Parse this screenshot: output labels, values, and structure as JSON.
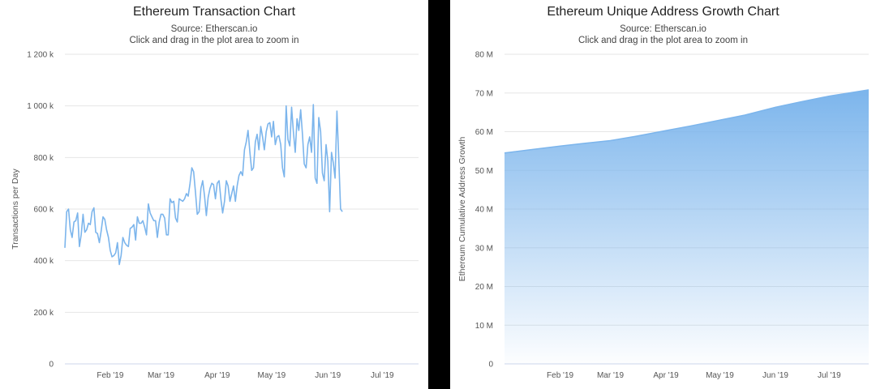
{
  "chart_data": [
    {
      "type": "line",
      "title": "Ethereum Transaction Chart",
      "subtitle": [
        "Source: Etherscan.io",
        "Click and drag in the plot area to zoom in"
      ],
      "ylabel": "Transactions per Day",
      "xlabel": "",
      "ylim": [
        0,
        1200000
      ],
      "yticks": [
        {
          "value": 0,
          "label": "0"
        },
        {
          "value": 200000,
          "label": "200 k"
        },
        {
          "value": 400000,
          "label": "400 k"
        },
        {
          "value": 600000,
          "label": "600 k"
        },
        {
          "value": 800000,
          "label": "800 k"
        },
        {
          "value": 1000000,
          "label": "1 000 k"
        },
        {
          "value": 1200000,
          "label": "1 200 k"
        }
      ],
      "xrange": [
        "2019-01-07",
        "2019-07-21"
      ],
      "xticks": [
        {
          "date": "2019-02-01",
          "label": "Feb '19"
        },
        {
          "date": "2019-03-01",
          "label": "Mar '19"
        },
        {
          "date": "2019-04-01",
          "label": "Apr '19"
        },
        {
          "date": "2019-05-01",
          "label": "May '19"
        },
        {
          "date": "2019-06-01",
          "label": "Jun '19"
        },
        {
          "date": "2019-07-01",
          "label": "Jul '19"
        }
      ],
      "grid": true,
      "color": "#7cb5ec",
      "series": [
        {
          "points": [
            [
              "2019-01-07",
              450000
            ],
            [
              "2019-01-08",
              590000
            ],
            [
              "2019-01-09",
              600000
            ],
            [
              "2019-01-10",
              520000
            ],
            [
              "2019-01-11",
              490000
            ],
            [
              "2019-01-12",
              550000
            ],
            [
              "2019-01-13",
              555000
            ],
            [
              "2019-01-14",
              585000
            ],
            [
              "2019-01-15",
              455000
            ],
            [
              "2019-01-16",
              500000
            ],
            [
              "2019-01-17",
              580000
            ],
            [
              "2019-01-18",
              510000
            ],
            [
              "2019-01-19",
              520000
            ],
            [
              "2019-01-20",
              545000
            ],
            [
              "2019-01-21",
              540000
            ],
            [
              "2019-01-22",
              590000
            ],
            [
              "2019-01-23",
              605000
            ],
            [
              "2019-01-24",
              510000
            ],
            [
              "2019-01-25",
              505000
            ],
            [
              "2019-01-26",
              470000
            ],
            [
              "2019-01-27",
              515000
            ],
            [
              "2019-01-28",
              570000
            ],
            [
              "2019-01-29",
              560000
            ],
            [
              "2019-01-30",
              520000
            ],
            [
              "2019-01-31",
              490000
            ],
            [
              "2019-02-01",
              440000
            ],
            [
              "2019-02-02",
              415000
            ],
            [
              "2019-02-03",
              420000
            ],
            [
              "2019-02-04",
              430000
            ],
            [
              "2019-02-05",
              470000
            ],
            [
              "2019-02-06",
              385000
            ],
            [
              "2019-02-07",
              420000
            ],
            [
              "2019-02-08",
              490000
            ],
            [
              "2019-02-09",
              470000
            ],
            [
              "2019-02-10",
              460000
            ],
            [
              "2019-02-11",
              455000
            ],
            [
              "2019-02-12",
              525000
            ],
            [
              "2019-02-13",
              530000
            ],
            [
              "2019-02-14",
              540000
            ],
            [
              "2019-02-15",
              480000
            ],
            [
              "2019-02-16",
              570000
            ],
            [
              "2019-02-17",
              545000
            ],
            [
              "2019-02-18",
              545000
            ],
            [
              "2019-02-19",
              555000
            ],
            [
              "2019-02-20",
              530000
            ],
            [
              "2019-02-21",
              500000
            ],
            [
              "2019-02-22",
              620000
            ],
            [
              "2019-02-23",
              585000
            ],
            [
              "2019-02-24",
              570000
            ],
            [
              "2019-02-25",
              555000
            ],
            [
              "2019-02-26",
              555000
            ],
            [
              "2019-02-27",
              490000
            ],
            [
              "2019-02-28",
              550000
            ],
            [
              "2019-03-01",
              580000
            ],
            [
              "2019-03-02",
              580000
            ],
            [
              "2019-03-03",
              565000
            ],
            [
              "2019-03-04",
              500000
            ],
            [
              "2019-03-05",
              500000
            ],
            [
              "2019-03-06",
              640000
            ],
            [
              "2019-03-07",
              625000
            ],
            [
              "2019-03-08",
              630000
            ],
            [
              "2019-03-09",
              565000
            ],
            [
              "2019-03-10",
              550000
            ],
            [
              "2019-03-11",
              640000
            ],
            [
              "2019-03-12",
              635000
            ],
            [
              "2019-03-13",
              630000
            ],
            [
              "2019-03-14",
              640000
            ],
            [
              "2019-03-15",
              660000
            ],
            [
              "2019-03-16",
              650000
            ],
            [
              "2019-03-17",
              700000
            ],
            [
              "2019-03-18",
              760000
            ],
            [
              "2019-03-19",
              745000
            ],
            [
              "2019-03-20",
              665000
            ],
            [
              "2019-03-21",
              580000
            ],
            [
              "2019-03-22",
              590000
            ],
            [
              "2019-03-23",
              680000
            ],
            [
              "2019-03-24",
              710000
            ],
            [
              "2019-03-25",
              650000
            ],
            [
              "2019-03-26",
              575000
            ],
            [
              "2019-03-27",
              645000
            ],
            [
              "2019-03-28",
              680000
            ],
            [
              "2019-03-29",
              700000
            ],
            [
              "2019-03-30",
              695000
            ],
            [
              "2019-03-31",
              640000
            ],
            [
              "2019-04-01",
              700000
            ],
            [
              "2019-04-02",
              710000
            ],
            [
              "2019-04-03",
              640000
            ],
            [
              "2019-04-04",
              585000
            ],
            [
              "2019-04-05",
              630000
            ],
            [
              "2019-04-06",
              710000
            ],
            [
              "2019-04-07",
              690000
            ],
            [
              "2019-04-08",
              630000
            ],
            [
              "2019-04-09",
              660000
            ],
            [
              "2019-04-10",
              690000
            ],
            [
              "2019-04-11",
              630000
            ],
            [
              "2019-04-12",
              690000
            ],
            [
              "2019-04-13",
              730000
            ],
            [
              "2019-04-14",
              745000
            ],
            [
              "2019-04-15",
              730000
            ],
            [
              "2019-04-16",
              830000
            ],
            [
              "2019-04-17",
              860000
            ],
            [
              "2019-04-18",
              905000
            ],
            [
              "2019-04-19",
              820000
            ],
            [
              "2019-04-20",
              750000
            ],
            [
              "2019-04-21",
              760000
            ],
            [
              "2019-04-22",
              860000
            ],
            [
              "2019-04-23",
              890000
            ],
            [
              "2019-04-24",
              830000
            ],
            [
              "2019-04-25",
              920000
            ],
            [
              "2019-04-26",
              880000
            ],
            [
              "2019-04-27",
              830000
            ],
            [
              "2019-04-28",
              900000
            ],
            [
              "2019-04-29",
              930000
            ],
            [
              "2019-04-30",
              935000
            ],
            [
              "2019-05-01",
              880000
            ],
            [
              "2019-05-02",
              940000
            ],
            [
              "2019-05-03",
              850000
            ],
            [
              "2019-05-04",
              880000
            ],
            [
              "2019-05-05",
              885000
            ],
            [
              "2019-05-06",
              850000
            ],
            [
              "2019-05-07",
              760000
            ],
            [
              "2019-05-08",
              725000
            ],
            [
              "2019-05-09",
              1000000
            ],
            [
              "2019-05-10",
              870000
            ],
            [
              "2019-05-11",
              845000
            ],
            [
              "2019-05-12",
              995000
            ],
            [
              "2019-05-13",
              900000
            ],
            [
              "2019-05-14",
              820000
            ],
            [
              "2019-05-15",
              950000
            ],
            [
              "2019-05-16",
              905000
            ],
            [
              "2019-05-17",
              985000
            ],
            [
              "2019-05-18",
              890000
            ],
            [
              "2019-05-19",
              775000
            ],
            [
              "2019-05-20",
              760000
            ],
            [
              "2019-05-21",
              850000
            ],
            [
              "2019-05-22",
              880000
            ],
            [
              "2019-05-23",
              820000
            ],
            [
              "2019-05-24",
              1005000
            ],
            [
              "2019-05-25",
              720000
            ],
            [
              "2019-05-26",
              700000
            ],
            [
              "2019-05-27",
              955000
            ],
            [
              "2019-05-28",
              900000
            ],
            [
              "2019-05-29",
              740000
            ],
            [
              "2019-05-30",
              710000
            ],
            [
              "2019-05-31",
              850000
            ],
            [
              "2019-06-01",
              785000
            ],
            [
              "2019-06-02",
              590000
            ],
            [
              "2019-06-03",
              820000
            ],
            [
              "2019-06-04",
              780000
            ],
            [
              "2019-06-05",
              720000
            ],
            [
              "2019-06-06",
              980000
            ],
            [
              "2019-06-07",
              800000
            ],
            [
              "2019-06-08",
              600000
            ],
            [
              "2019-06-09",
              590000
            ]
          ]
        }
      ]
    },
    {
      "type": "area",
      "title": "Ethereum Unique Address Growth Chart",
      "subtitle": [
        "Source: Etherscan.io",
        "Click and drag in the plot area to zoom in"
      ],
      "ylabel": "Ethereum Cumulative Address Growth",
      "xlabel": "",
      "ylim": [
        0,
        80000000
      ],
      "yticks": [
        {
          "value": 0,
          "label": "0"
        },
        {
          "value": 10000000,
          "label": "10 M"
        },
        {
          "value": 20000000,
          "label": "20 M"
        },
        {
          "value": 30000000,
          "label": "30 M"
        },
        {
          "value": 40000000,
          "label": "40 M"
        },
        {
          "value": 50000000,
          "label": "50 M"
        },
        {
          "value": 60000000,
          "label": "60 M"
        },
        {
          "value": 70000000,
          "label": "70 M"
        },
        {
          "value": 80000000,
          "label": "80 M"
        }
      ],
      "xrange": [
        "2019-01-01",
        "2019-07-23"
      ],
      "xticks": [
        {
          "date": "2019-02-01",
          "label": "Feb '19"
        },
        {
          "date": "2019-03-01",
          "label": "Mar '19"
        },
        {
          "date": "2019-04-01",
          "label": "Apr '19"
        },
        {
          "date": "2019-05-01",
          "label": "May '19"
        },
        {
          "date": "2019-06-01",
          "label": "Jun '19"
        },
        {
          "date": "2019-07-01",
          "label": "Jul '19"
        }
      ],
      "grid": true,
      "color": "#7cb5ec",
      "series": [
        {
          "points": [
            [
              "2019-01-01",
              54500000
            ],
            [
              "2019-01-15",
              55300000
            ],
            [
              "2019-02-01",
              56300000
            ],
            [
              "2019-02-15",
              57000000
            ],
            [
              "2019-03-01",
              57700000
            ],
            [
              "2019-03-15",
              58800000
            ],
            [
              "2019-04-01",
              60300000
            ],
            [
              "2019-04-15",
              61500000
            ],
            [
              "2019-05-01",
              63000000
            ],
            [
              "2019-05-15",
              64300000
            ],
            [
              "2019-06-01",
              66300000
            ],
            [
              "2019-06-15",
              67700000
            ],
            [
              "2019-07-01",
              69200000
            ],
            [
              "2019-07-23",
              70800000
            ]
          ]
        }
      ]
    }
  ]
}
